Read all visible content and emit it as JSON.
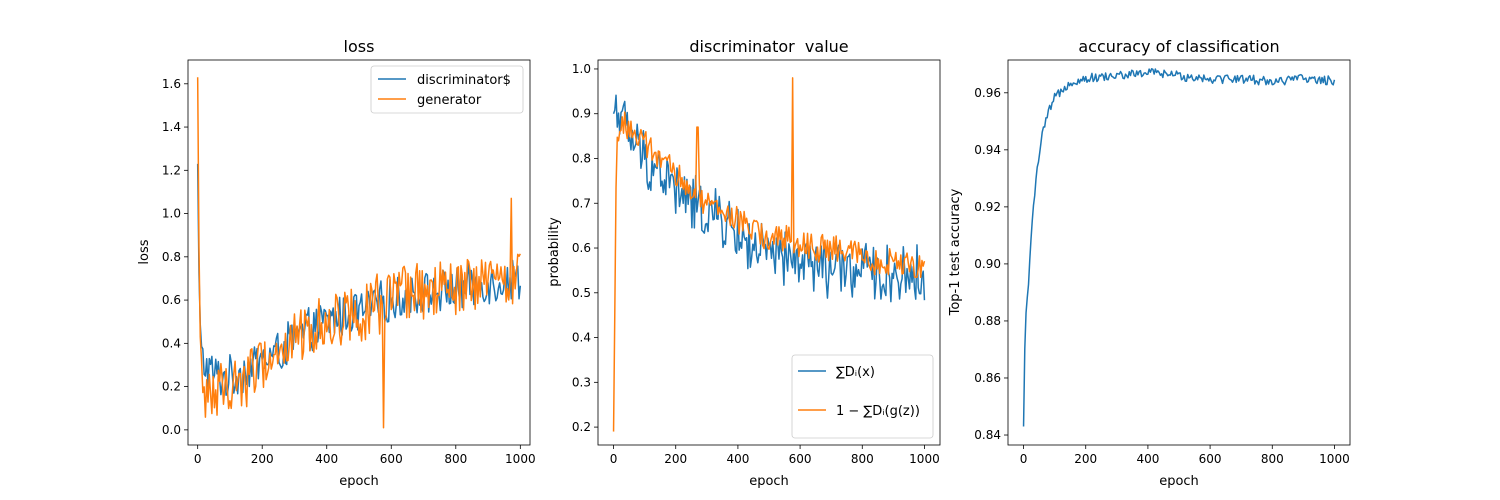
{
  "colors": {
    "series1": "#1f77b4",
    "series2": "#ff7f0e"
  },
  "chart_data": [
    {
      "type": "line",
      "title": "loss",
      "xlabel": "epoch",
      "ylabel": "loss",
      "xlim": [
        -30,
        1030
      ],
      "ylim": [
        -0.07,
        1.71
      ],
      "xticks": [
        0,
        200,
        400,
        600,
        800,
        1000
      ],
      "yticks": [
        0.0,
        0.2,
        0.4,
        0.6,
        0.8,
        1.0,
        1.2,
        1.4,
        1.6
      ],
      "ytick_decimals": 1,
      "grid": false,
      "legend": {
        "placement": "top-right"
      },
      "series": [
        {
          "name": "discriminator$",
          "color_key": "series1",
          "x": [
            0,
            5,
            10,
            20,
            40,
            60,
            80,
            100,
            150,
            200,
            250,
            300,
            350,
            400,
            450,
            500,
            550,
            600,
            650,
            700,
            750,
            800,
            850,
            900,
            950,
            1000
          ],
          "y": [
            1.23,
            0.6,
            0.35,
            0.3,
            0.27,
            0.25,
            0.24,
            0.24,
            0.28,
            0.32,
            0.36,
            0.42,
            0.46,
            0.5,
            0.53,
            0.55,
            0.57,
            0.6,
            0.62,
            0.63,
            0.64,
            0.65,
            0.66,
            0.68,
            0.69,
            0.7
          ],
          "noise": 0.08
        },
        {
          "name": "generator",
          "color_key": "series2",
          "x": [
            0,
            5,
            10,
            20,
            40,
            60,
            80,
            100,
            150,
            200,
            250,
            300,
            350,
            400,
            450,
            500,
            550,
            600,
            650,
            700,
            750,
            800,
            850,
            900,
            950,
            1000
          ],
          "y": [
            1.63,
            0.65,
            0.2,
            0.17,
            0.18,
            0.18,
            0.19,
            0.2,
            0.25,
            0.3,
            0.36,
            0.42,
            0.46,
            0.5,
            0.53,
            0.55,
            0.57,
            0.6,
            0.62,
            0.63,
            0.64,
            0.65,
            0.66,
            0.68,
            0.69,
            0.7
          ],
          "noise": 0.11,
          "spikes": [
            {
              "x": 575,
              "y": 0.01
            },
            {
              "x": 972,
              "y": 1.07
            }
          ]
        }
      ]
    },
    {
      "type": "line",
      "title": "discriminator  value",
      "xlabel": "epoch",
      "ylabel": "probability",
      "xlim": [
        -50,
        1050
      ],
      "ylim": [
        0.16,
        1.02
      ],
      "xticks": [
        0,
        200,
        400,
        600,
        800,
        1000
      ],
      "yticks": [
        0.2,
        0.3,
        0.4,
        0.5,
        0.6,
        0.7,
        0.8,
        0.9,
        1.0
      ],
      "ytick_decimals": 1,
      "grid": false,
      "legend": {
        "placement": "bottom-right"
      },
      "series": [
        {
          "name": "∑Dᵢ(x)",
          "color_key": "series1",
          "x": [
            0,
            10,
            30,
            60,
            100,
            150,
            200,
            250,
            300,
            350,
            400,
            450,
            500,
            550,
            600,
            650,
            700,
            750,
            800,
            850,
            900,
            950,
            1000
          ],
          "y": [
            0.9,
            0.92,
            0.88,
            0.84,
            0.8,
            0.77,
            0.73,
            0.7,
            0.68,
            0.66,
            0.63,
            0.6,
            0.58,
            0.57,
            0.57,
            0.56,
            0.55,
            0.55,
            0.55,
            0.54,
            0.54,
            0.54,
            0.54
          ],
          "noise": 0.05
        },
        {
          "name": "1 − ∑Dᵢ(g(z))",
          "color_key": "series2",
          "x": [
            0,
            10,
            30,
            60,
            100,
            150,
            200,
            250,
            300,
            350,
            400,
            450,
            500,
            550,
            600,
            650,
            700,
            750,
            800,
            850,
            900,
            950,
            1000
          ],
          "y": [
            0.19,
            0.85,
            0.88,
            0.86,
            0.83,
            0.8,
            0.76,
            0.73,
            0.7,
            0.68,
            0.66,
            0.64,
            0.62,
            0.62,
            0.61,
            0.6,
            0.6,
            0.59,
            0.58,
            0.57,
            0.57,
            0.56,
            0.56
          ],
          "noise": 0.025,
          "spikes": [
            {
              "x": 575,
              "y": 0.98
            },
            {
              "x": 270,
              "y": 0.87
            }
          ]
        }
      ]
    },
    {
      "type": "line",
      "title": "accuracy of classification",
      "xlabel": "epoch",
      "ylabel": "Top-1 test accuracy",
      "xlim": [
        -50,
        1050
      ],
      "ylim": [
        0.8365,
        0.9715
      ],
      "xticks": [
        0,
        200,
        400,
        600,
        800,
        1000
      ],
      "yticks": [
        0.84,
        0.86,
        0.88,
        0.9,
        0.92,
        0.94,
        0.96
      ],
      "ytick_decimals": 2,
      "grid": false,
      "legend": null,
      "series": [
        {
          "name": "",
          "color_key": "series1",
          "x": [
            0,
            5,
            10,
            20,
            30,
            40,
            60,
            80,
            100,
            130,
            160,
            200,
            300,
            400,
            430,
            500,
            600,
            700,
            800,
            900,
            1000
          ],
          "y": [
            0.843,
            0.877,
            0.885,
            0.9,
            0.918,
            0.93,
            0.945,
            0.953,
            0.958,
            0.962,
            0.964,
            0.965,
            0.966,
            0.967,
            0.967,
            0.966,
            0.965,
            0.965,
            0.964,
            0.965,
            0.964
          ],
          "noise": 0.0013
        }
      ]
    }
  ]
}
